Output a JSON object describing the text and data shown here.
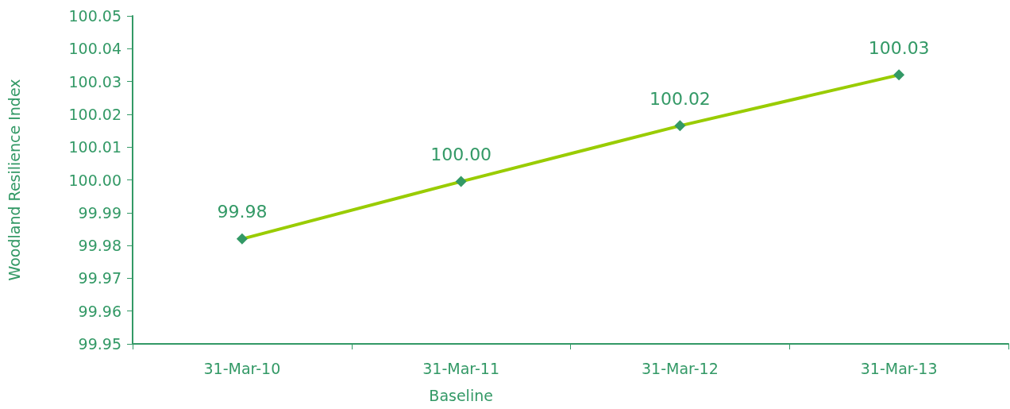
{
  "chart_data": {
    "type": "line",
    "ylabel": "Woodland Resilience Index",
    "categories": [
      "31-Mar-10",
      "31-Mar-11\nBaseline",
      "31-Mar-12",
      "31-Mar-13"
    ],
    "series": [
      {
        "color": "#99cc00",
        "colors": [
          "#339966",
          "#339966",
          "#339966",
          "#339966"
        ],
        "values": [
          99.982,
          99.9995,
          100.0165,
          100.032
        ],
        "value_labels": [
          "99.98",
          "100.00",
          "100.02",
          "100.03"
        ]
      }
    ],
    "ylim": [
      99.95,
      100.05
    ],
    "yticks": [
      {
        "value": 99.95,
        "label": "99.95"
      },
      {
        "value": 99.96,
        "label": "99.96"
      },
      {
        "value": 99.97,
        "label": "99.97"
      },
      {
        "value": 99.98,
        "label": "99.98"
      },
      {
        "value": 99.99,
        "label": "99.99"
      },
      {
        "value": 100.0,
        "label": "100.00"
      },
      {
        "value": 100.01,
        "label": "100.01"
      },
      {
        "value": 100.02,
        "label": "100.02"
      },
      {
        "value": 100.03,
        "label": "100.03"
      },
      {
        "value": 100.04,
        "label": "100.04"
      },
      {
        "value": 100.05,
        "label": "100.05"
      }
    ],
    "grid": false,
    "marker": "diamond",
    "line_style": "solid"
  }
}
